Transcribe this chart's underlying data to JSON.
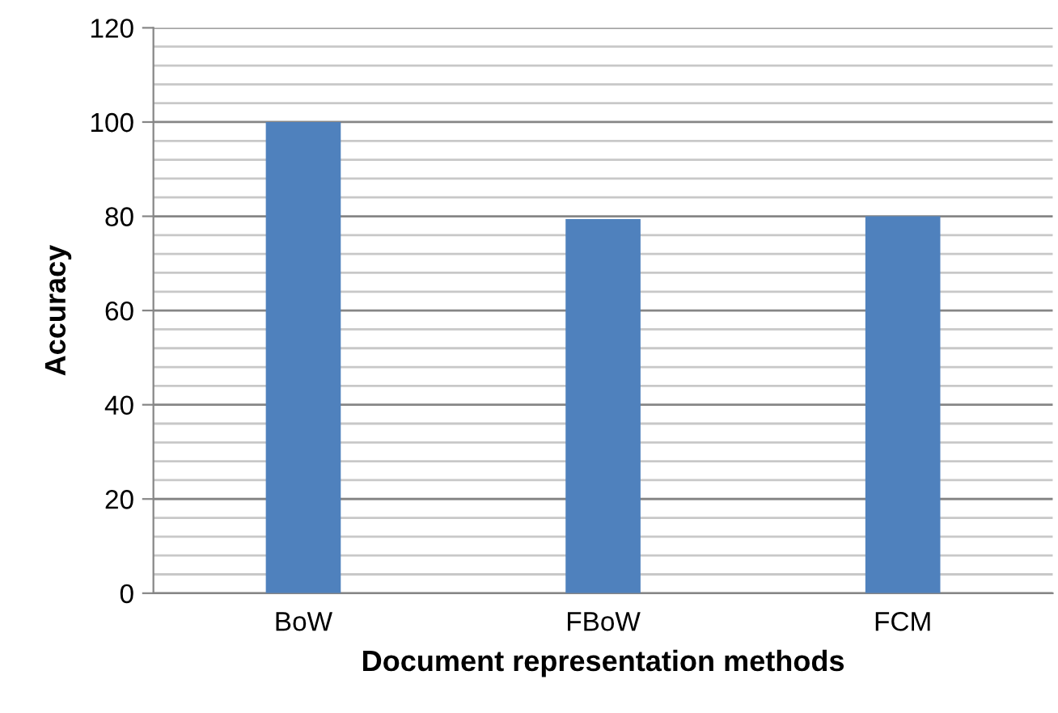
{
  "chart_data": {
    "type": "bar",
    "xlabel": "Document representation methods",
    "ylabel": "Accuracy",
    "categories": [
      "BoW",
      "FBoW",
      "FCM"
    ],
    "values": [
      100,
      79.4,
      80
    ],
    "color": "#4f81bd",
    "ylim": [
      0,
      120
    ],
    "yticks": [
      0,
      {
        "value": 4,
        "label": null
      },
      {
        "value": 8,
        "label": null
      },
      {
        "value": 12,
        "label": null
      },
      {
        "value": 16,
        "label": null
      },
      20,
      {
        "value": 24,
        "label": null
      },
      {
        "value": 28,
        "label": null
      },
      {
        "value": 32,
        "label": null
      },
      {
        "value": 36,
        "label": null
      },
      40,
      {
        "value": 44,
        "label": null
      },
      {
        "value": 48,
        "label": null
      },
      {
        "value": 52,
        "label": null
      },
      {
        "value": 56,
        "label": null
      },
      60,
      {
        "value": 64,
        "label": null
      },
      {
        "value": 68,
        "label": null
      },
      {
        "value": 72,
        "label": null
      },
      {
        "value": 76,
        "label": null
      },
      80,
      {
        "value": 84,
        "label": null
      },
      {
        "value": 88,
        "label": null
      },
      {
        "value": 92,
        "label": null
      },
      {
        "value": 96,
        "label": null
      },
      100,
      {
        "value": 104,
        "label": null
      },
      {
        "value": 108,
        "label": null
      },
      {
        "value": 112,
        "label": null
      },
      {
        "value": 116,
        "label": null
      },
      120
    ],
    "grid": "y",
    "legend": false
  }
}
